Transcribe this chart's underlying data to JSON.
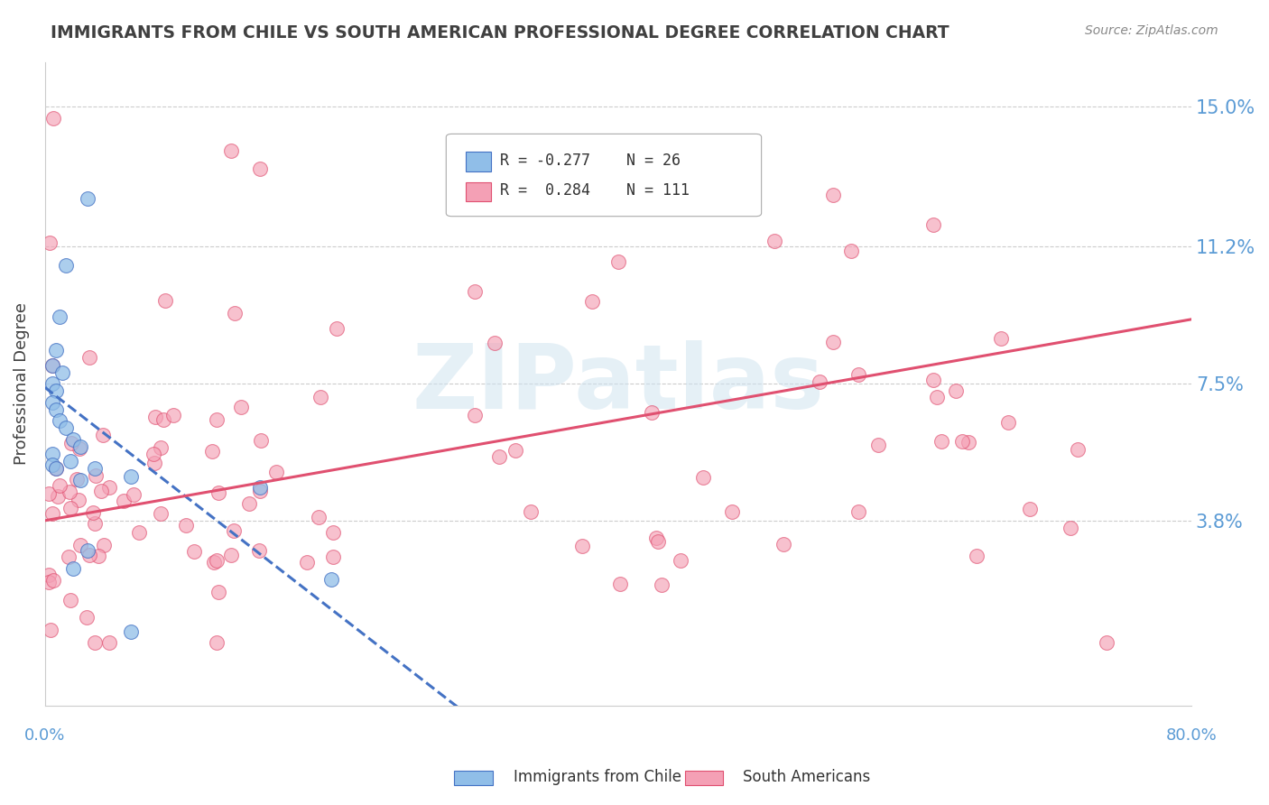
{
  "title": "IMMIGRANTS FROM CHILE VS SOUTH AMERICAN PROFESSIONAL DEGREE CORRELATION CHART",
  "source": "Source: ZipAtlas.com",
  "ylabel": "Professional Degree",
  "yticks": [
    0.038,
    0.075,
    0.112,
    0.15
  ],
  "ytick_labels": [
    "3.8%",
    "7.5%",
    "11.2%",
    "15.0%"
  ],
  "xmin": 0.0,
  "xmax": 0.8,
  "ymin": -0.012,
  "ymax": 0.162,
  "legend_label1": "Immigrants from Chile",
  "legend_label2": "South Americans",
  "watermark": "ZIPatlas",
  "color_blue": "#90bee8",
  "color_pink": "#f4a0b5",
  "color_blue_line": "#4472c4",
  "color_pink_line": "#e05070",
  "color_axis_text": "#5b9bd5",
  "color_title": "#404040",
  "color_source": "#888888",
  "color_grid": "#cccccc"
}
